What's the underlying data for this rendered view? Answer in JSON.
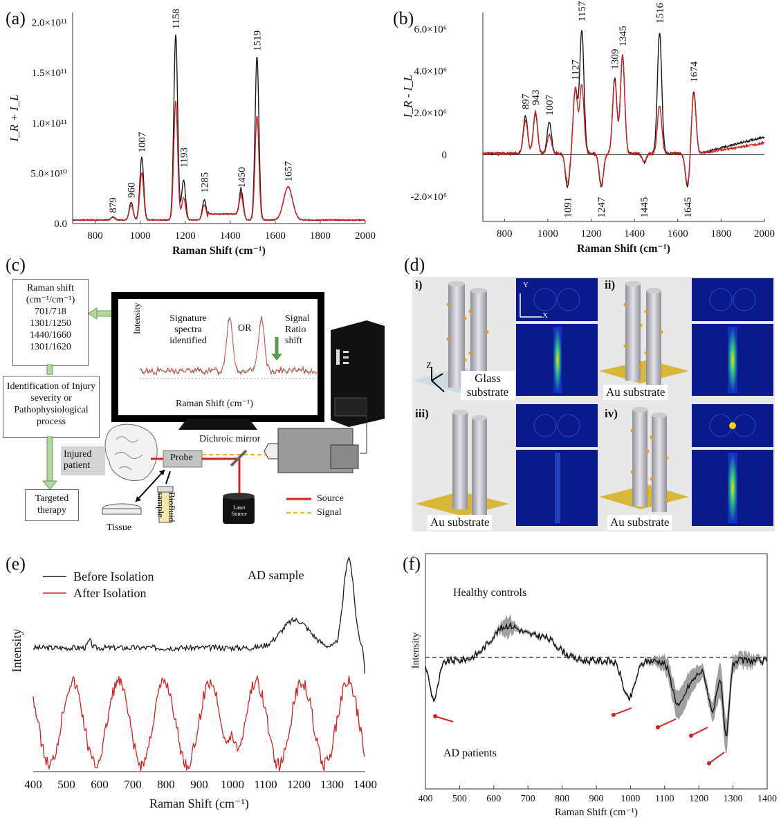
{
  "colors": {
    "black_line": "#1a1a1a",
    "red_line": "#d62020",
    "grey_fill": "#888888"
  },
  "panels": {
    "a": {
      "label": "(a)"
    },
    "b": {
      "label": "(b)"
    },
    "c": {
      "label": "(c)"
    },
    "d": {
      "label": "(d)"
    },
    "e": {
      "label": "(e)"
    },
    "f": {
      "label": "(f)"
    }
  },
  "chart_data": [
    {
      "id": "a",
      "type": "line",
      "xlabel": "Raman Shift (cm⁻¹)",
      "ylabel": "I_R + I_L",
      "xlim": [
        700,
        2000
      ],
      "ylim": [
        0,
        210000000000.0
      ],
      "xticks": [
        "800",
        "1000",
        "1200",
        "1400",
        "1600",
        "1800",
        "2000"
      ],
      "yticks": [
        "0.0",
        "5.0×10¹⁰",
        "1.0×10¹¹",
        "1.5×10¹¹",
        "2.0×10¹¹"
      ],
      "peak_labels": [
        "879",
        "960",
        "1007",
        "1158",
        "1193",
        "1285",
        "1450",
        "1519",
        "1657"
      ],
      "series": [
        {
          "color": "black",
          "peaks": [
            [
              879,
              0.03
            ],
            [
              960,
              0.18
            ],
            [
              1007,
              0.63
            ],
            [
              1158,
              1.85
            ],
            [
              1193,
              0.4
            ],
            [
              1285,
              0.2
            ],
            [
              1450,
              0.28
            ],
            [
              1519,
              1.63
            ],
            [
              1657,
              0.33
            ]
          ]
        },
        {
          "color": "red",
          "peaks": [
            [
              879,
              0.03
            ],
            [
              960,
              0.15
            ],
            [
              1007,
              0.47
            ],
            [
              1158,
              1.19
            ],
            [
              1193,
              0.22
            ],
            [
              1285,
              0.15
            ],
            [
              1450,
              0.22
            ],
            [
              1519,
              1.04
            ],
            [
              1657,
              0.33
            ]
          ]
        }
      ]
    },
    {
      "id": "b",
      "type": "line",
      "xlabel": "Raman Shift (cm⁻¹)",
      "ylabel": "I_R - I_L",
      "xlim": [
        700,
        2000
      ],
      "ylim": [
        -3200000.0,
        6800000.0
      ],
      "xticks": [
        "800",
        "1000",
        "1200",
        "1400",
        "1600",
        "1800",
        "2000"
      ],
      "yticks": [
        "-2.0×10⁶",
        "0",
        "2.0×10⁶",
        "4.0×10⁶",
        "6.0×10⁶"
      ],
      "peak_labels_top": [
        "897",
        "943",
        "1007",
        "1127",
        "1157",
        "1309",
        "1345",
        "1516",
        "1674"
      ],
      "peak_labels_bottom": [
        "1091",
        "1247",
        "1445",
        "1645"
      ],
      "series": [
        {
          "color": "black",
          "peaks": [
            [
              897,
              1.8
            ],
            [
              943,
              1.9
            ],
            [
              1007,
              1.5
            ],
            [
              1091,
              -1.6
            ],
            [
              1127,
              3.1
            ],
            [
              1157,
              5.9
            ],
            [
              1247,
              -1.6
            ],
            [
              1309,
              3.6
            ],
            [
              1345,
              4.7
            ],
            [
              1445,
              -0.4
            ],
            [
              1516,
              5.8
            ],
            [
              1645,
              -1.6
            ],
            [
              1674,
              3.0
            ]
          ]
        },
        {
          "color": "red",
          "peaks": [
            [
              897,
              1.6
            ],
            [
              943,
              2.0
            ],
            [
              1007,
              0.9
            ],
            [
              1091,
              -1.4
            ],
            [
              1127,
              3.1
            ],
            [
              1157,
              3.3
            ],
            [
              1247,
              -1.5
            ],
            [
              1309,
              3.5
            ],
            [
              1345,
              4.7
            ],
            [
              1445,
              -0.4
            ],
            [
              1516,
              2.3
            ],
            [
              1645,
              -1.5
            ],
            [
              1674,
              2.9
            ]
          ]
        }
      ]
    },
    {
      "id": "e",
      "type": "line",
      "xlabel": "Raman Shift (cm⁻¹)",
      "ylabel": "Intensity",
      "xlim": [
        400,
        1400
      ],
      "xticks": [
        "400",
        "500",
        "600",
        "700",
        "800",
        "900",
        "1000",
        "1100",
        "1200",
        "1300",
        "1400"
      ],
      "annotation": "AD sample",
      "legend": [
        "Before Isolation",
        "After Isolation"
      ],
      "legend_position": "top-left"
    },
    {
      "id": "f",
      "type": "line",
      "xlabel": "Raman Shift (cm⁻¹)",
      "ylabel": "Intensity",
      "xlim": [
        400,
        1400
      ],
      "xticks": [
        "400",
        "500",
        "600",
        "700",
        "800",
        "900",
        "1000",
        "1100",
        "1200",
        "1300",
        "1400"
      ],
      "annotations": [
        "Healthy controls",
        "AD patients"
      ],
      "arrow_x": [
        425,
        1000,
        1140,
        1240,
        1280
      ]
    }
  ],
  "diagram_c": {
    "ratio_box": {
      "title": "Raman shift",
      "unit": "(cm⁻¹/cm⁻¹)",
      "ratios": [
        "701/718",
        "1301/1250",
        "1440/1660",
        "1301/1620"
      ]
    },
    "identify_box": "Identification of Injury severity or Pathophysiological process",
    "therapy_box": "Targeted therapy",
    "screen": {
      "ylabel": "Intensity",
      "sig_text": "Signature spectra identified",
      "or_text": "OR",
      "ratio_text": "Signal Ratio shift",
      "xlabel": "Raman Shift (cm⁻¹)"
    },
    "patient": "Injured patient",
    "probe": "Probe",
    "mirror": "Dichroic mirror",
    "tissue": "Tissue",
    "biofluid": "Biofluid sample",
    "laser": "Laser Source",
    "legend_source": "Source",
    "legend_signal": "Signal"
  },
  "diagram_d": {
    "subpanels": [
      {
        "id": "i)",
        "substrate": "Glass substrate"
      },
      {
        "id": "ii)",
        "substrate": "Au substrate"
      },
      {
        "id": "iii)",
        "substrate": "Au substrate"
      },
      {
        "id": "iv)",
        "substrate": "Au substrate"
      }
    ],
    "axes": {
      "y": "Y",
      "x": "X",
      "z": "Z"
    }
  }
}
